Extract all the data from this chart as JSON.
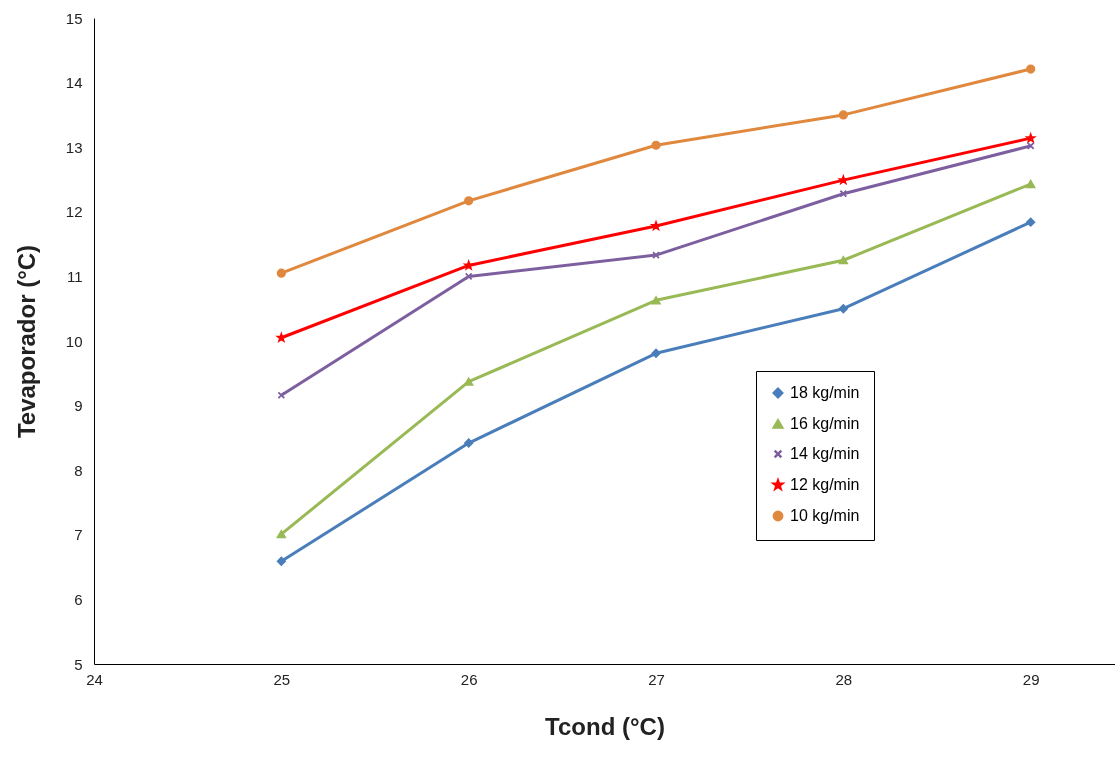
{
  "chart_data": {
    "type": "line",
    "xlabel": "Tcond (°C)",
    "ylabel": "Tevaporador (°C)",
    "x": [
      25,
      26,
      27,
      28,
      29
    ],
    "series": [
      {
        "name": "18 kg/min",
        "color": "#4a7ebb",
        "marker": "diamond",
        "values": [
          6.59,
          8.42,
          9.81,
          10.5,
          11.84
        ]
      },
      {
        "name": "16 kg/min",
        "color": "#98b954",
        "marker": "triangle",
        "values": [
          7.01,
          9.37,
          10.63,
          11.25,
          12.43
        ]
      },
      {
        "name": "14 kg/min",
        "color": "#7d5fa0",
        "marker": "cross",
        "values": [
          9.16,
          11.0,
          11.33,
          12.28,
          13.02
        ]
      },
      {
        "name": "12 kg/min",
        "color": "#ff0000",
        "marker": "star",
        "values": [
          10.05,
          11.17,
          11.78,
          12.49,
          13.14
        ]
      },
      {
        "name": "10 kg/min",
        "color": "#e0883e",
        "marker": "circle",
        "values": [
          11.05,
          12.17,
          13.03,
          13.5,
          14.21
        ]
      }
    ],
    "xlim": [
      24,
      29.45
    ],
    "xticks": [
      24,
      25,
      26,
      27,
      28,
      29
    ],
    "ylim": [
      5,
      15
    ],
    "yticks": [
      5,
      6,
      7,
      8,
      9,
      10,
      11,
      12,
      13,
      14,
      15
    ],
    "grid": false,
    "legend": "bottom right",
    "line_style": "solid"
  }
}
